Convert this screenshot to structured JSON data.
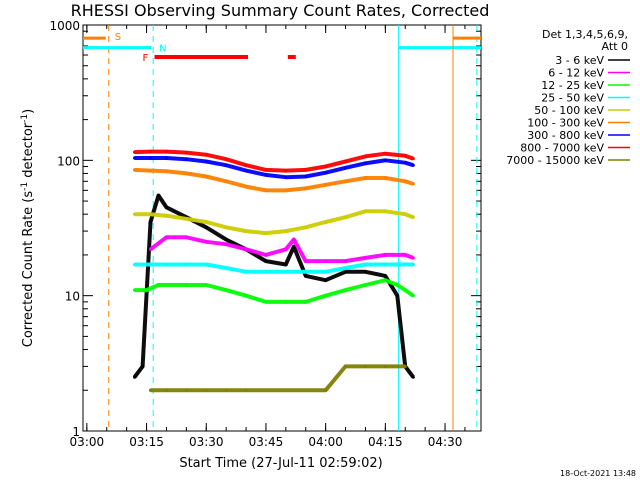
{
  "chart_data": {
    "type": "line",
    "title": "RHESSI Observing Summary Count Rates, Corrected",
    "xlabel": "Start Time (27-Jul-11 02:59:02)",
    "ylabel": "Corrected Count Rate (s⁻¹ detector⁻¹)",
    "ylabel_main": "Corrected Count Rate (s",
    "ylabel_sup1": "-1",
    "ylabel_mid": " detector",
    "ylabel_sup2": "-1",
    "ylabel_end": ")",
    "y_scale": "log",
    "ylim": [
      1,
      1000
    ],
    "xlim": [
      "02:59:02",
      "04:39:02"
    ],
    "x_ticks": [
      "03:00",
      "03:15",
      "03:30",
      "03:45",
      "04:00",
      "04:15",
      "04:30"
    ],
    "y_ticks": [
      "1",
      "10",
      "100",
      "1000"
    ],
    "legend_header": [
      "Det 1,3,4,5,6,9,",
      "Att 0"
    ],
    "legend_position": "top-right outside",
    "footer": "18-Oct-2021 13:48",
    "flags": {
      "S": {
        "label": "S",
        "color": "#ff8000",
        "start": "02:59:02",
        "end": "03:05:30",
        "level": 800
      },
      "N": {
        "label": "N",
        "color": "#00ffff",
        "start": "02:59:02",
        "end": "03:16:40",
        "level": 680,
        "start2": "04:18:20",
        "end2": "04:39:02"
      },
      "F": {
        "label": "F",
        "color": "#ff0000",
        "spans": [
          [
            "03:17:00",
            "03:40:30"
          ],
          [
            "03:50:30",
            "03:52:30"
          ]
        ],
        "level": 580
      }
    },
    "series": [
      {
        "name": "3 - 6 keV",
        "color": "#000000",
        "x": [
          "03:12",
          "03:14",
          "03:16",
          "03:18",
          "03:20",
          "03:25",
          "03:30",
          "03:35",
          "03:40",
          "03:45",
          "03:50",
          "03:52",
          "03:55",
          "04:00",
          "04:05",
          "04:10",
          "04:15",
          "04:18",
          "04:20",
          "04:22"
        ],
        "values": [
          2.5,
          3,
          35,
          55,
          45,
          38,
          32,
          26,
          22,
          18,
          17,
          23,
          14,
          13,
          15,
          15,
          14,
          10,
          3,
          2.5
        ]
      },
      {
        "name": "6 - 12 keV",
        "color": "#ff00ff",
        "x": [
          "03:16",
          "03:20",
          "03:25",
          "03:30",
          "03:35",
          "03:40",
          "03:45",
          "03:50",
          "03:52",
          "03:55",
          "04:00",
          "04:05",
          "04:10",
          "04:15",
          "04:20",
          "04:22"
        ],
        "values": [
          22,
          27,
          27,
          25,
          24,
          22,
          20,
          22,
          26,
          18,
          18,
          18,
          19,
          20,
          20,
          19
        ]
      },
      {
        "name": "12 - 25 keV",
        "color": "#00ff00",
        "x": [
          "03:12",
          "03:15",
          "03:18",
          "03:25",
          "03:30",
          "03:35",
          "03:40",
          "03:45",
          "03:50",
          "03:55",
          "04:00",
          "04:05",
          "04:10",
          "04:15",
          "04:18",
          "04:20",
          "04:22"
        ],
        "values": [
          11,
          11,
          12,
          12,
          12,
          11,
          10,
          9,
          9,
          9,
          10,
          11,
          12,
          13,
          12,
          11,
          10
        ]
      },
      {
        "name": "25 - 50 keV",
        "color": "#00ffff",
        "x": [
          "03:12",
          "03:16",
          "03:20",
          "03:25",
          "03:30",
          "03:35",
          "03:40",
          "03:45",
          "03:50",
          "03:55",
          "04:00",
          "04:05",
          "04:10",
          "04:15",
          "04:20",
          "04:22"
        ],
        "values": [
          17,
          17,
          17,
          17,
          17,
          16,
          15,
          15,
          15,
          15,
          15,
          16,
          17,
          17,
          17,
          17
        ]
      },
      {
        "name": "50 - 100 keV",
        "color": "#cccc00",
        "x": [
          "03:12",
          "03:16",
          "03:20",
          "03:25",
          "03:30",
          "03:35",
          "03:40",
          "03:45",
          "03:50",
          "03:55",
          "04:00",
          "04:05",
          "04:10",
          "04:15",
          "04:20",
          "04:22"
        ],
        "values": [
          40,
          40,
          39,
          37,
          35,
          32,
          30,
          29,
          30,
          32,
          35,
          38,
          42,
          42,
          40,
          38
        ]
      },
      {
        "name": "100 - 300 keV",
        "color": "#ff8000",
        "x": [
          "03:12",
          "03:16",
          "03:20",
          "03:25",
          "03:30",
          "03:35",
          "03:40",
          "03:45",
          "03:50",
          "03:55",
          "04:00",
          "04:05",
          "04:10",
          "04:15",
          "04:20",
          "04:22"
        ],
        "values": [
          85,
          84,
          83,
          80,
          76,
          70,
          64,
          60,
          60,
          62,
          66,
          70,
          74,
          74,
          70,
          67
        ]
      },
      {
        "name": "300 - 800 keV",
        "color": "#0000ff",
        "x": [
          "03:12",
          "03:16",
          "03:20",
          "03:25",
          "03:30",
          "03:35",
          "03:40",
          "03:45",
          "03:50",
          "03:55",
          "04:00",
          "04:05",
          "04:10",
          "04:15",
          "04:20",
          "04:22"
        ],
        "values": [
          104,
          104,
          104,
          102,
          98,
          92,
          84,
          78,
          75,
          76,
          81,
          88,
          95,
          100,
          96,
          92
        ]
      },
      {
        "name": "800 - 7000 keV",
        "color": "#ff0000",
        "x": [
          "03:12",
          "03:16",
          "03:20",
          "03:25",
          "03:30",
          "03:35",
          "03:40",
          "03:45",
          "03:50",
          "03:55",
          "04:00",
          "04:05",
          "04:10",
          "04:15",
          "04:20",
          "04:22"
        ],
        "values": [
          115,
          116,
          116,
          114,
          110,
          102,
          92,
          85,
          84,
          85,
          90,
          98,
          107,
          112,
          108,
          103
        ]
      },
      {
        "name": "7000 - 15000 keV",
        "color": "#808000",
        "x": [
          "03:16",
          "03:20",
          "03:25",
          "03:30",
          "03:35",
          "03:40",
          "04:00",
          "04:05",
          "04:10",
          "04:15",
          "04:20"
        ],
        "values": [
          2,
          2,
          2,
          2,
          2,
          2,
          2,
          3,
          3,
          3,
          3
        ]
      }
    ]
  }
}
